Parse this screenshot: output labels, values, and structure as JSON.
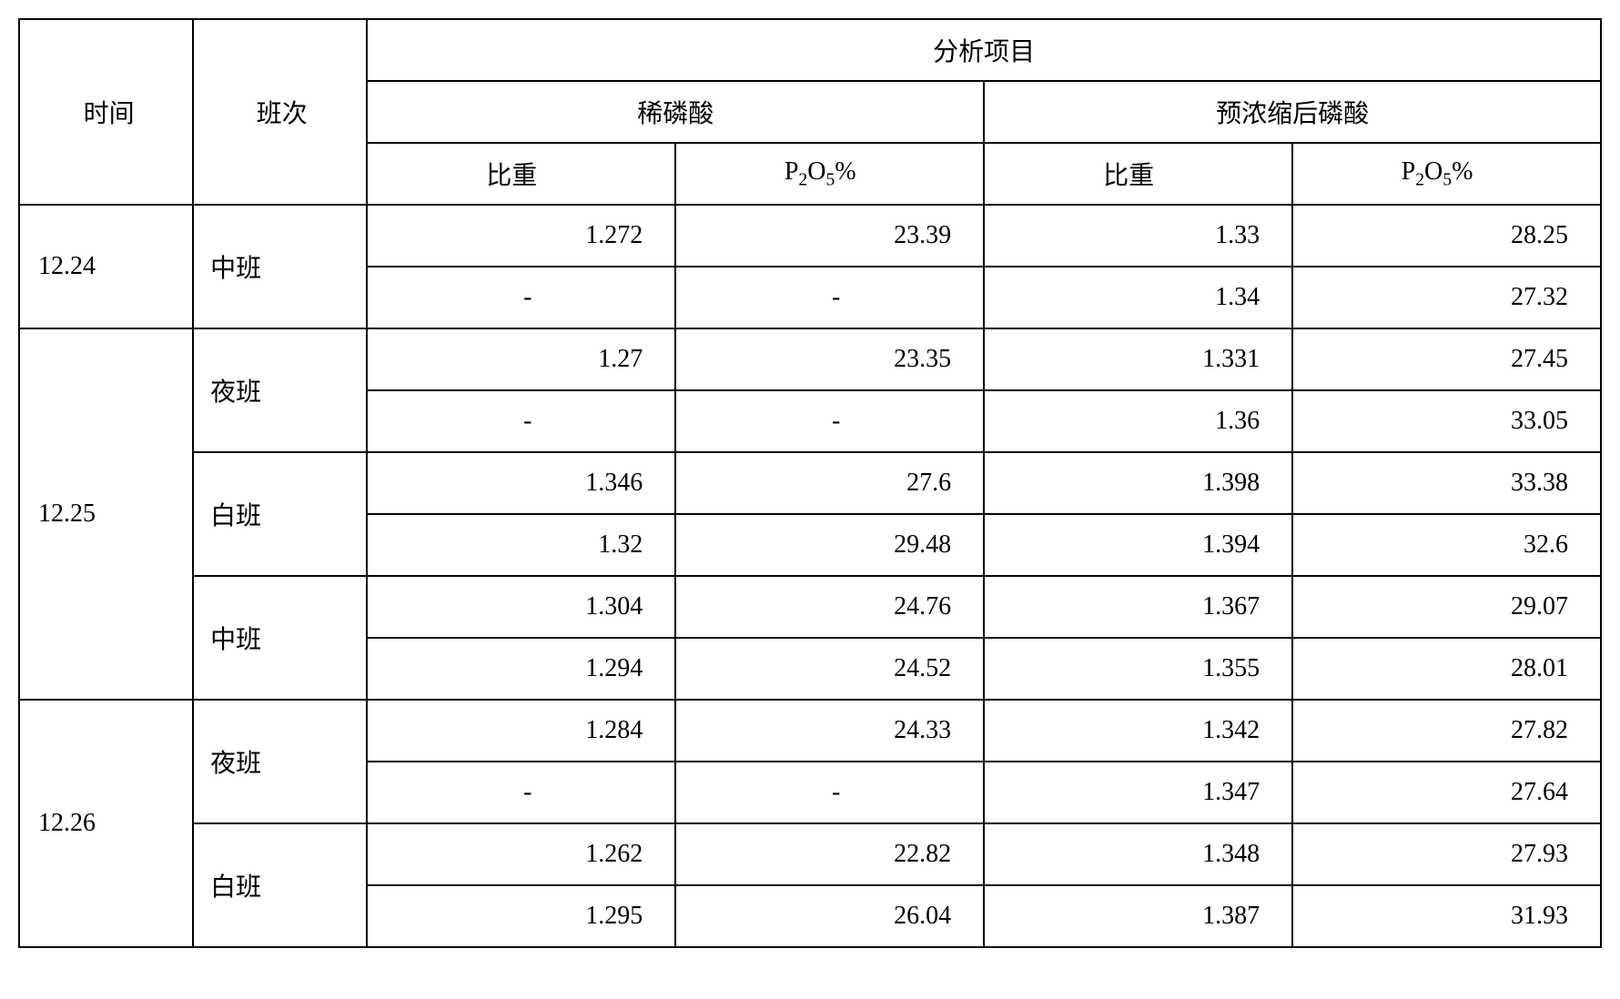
{
  "table": {
    "type": "table",
    "background_color": "#ffffff",
    "border_color": "#000000",
    "border_width": 2,
    "text_color": "#000000",
    "font_size_pt": 21,
    "font_family": "SimSun",
    "headers": {
      "time": "时间",
      "shift": "班次",
      "analysis": "分析项目",
      "dilute_acid": "稀磷酸",
      "concentrated_acid": "预浓缩后磷酸",
      "specific_gravity": "比重",
      "p2o5_percent_prefix": "P",
      "p2o5_percent_sub1": "2",
      "p2o5_percent_mid": "O",
      "p2o5_percent_sub2": "5",
      "p2o5_percent_suffix": "%"
    },
    "column_widths_pct": [
      11,
      11,
      19.5,
      19.5,
      19.5,
      19.5
    ],
    "column_alignment": [
      "left",
      "left",
      "right",
      "right",
      "right",
      "right"
    ],
    "groups": [
      {
        "date": "12.24",
        "shifts": [
          {
            "name": "中班",
            "rows": [
              {
                "dilute_sg": "1.272",
                "dilute_p2o5": "23.39",
                "conc_sg": "1.33",
                "conc_p2o5": "28.25"
              },
              {
                "dilute_sg": "-",
                "dilute_p2o5": "-",
                "conc_sg": "1.34",
                "conc_p2o5": "27.32"
              }
            ]
          }
        ]
      },
      {
        "date": "12.25",
        "shifts": [
          {
            "name": "夜班",
            "rows": [
              {
                "dilute_sg": "1.27",
                "dilute_p2o5": "23.35",
                "conc_sg": "1.331",
                "conc_p2o5": "27.45"
              },
              {
                "dilute_sg": "-",
                "dilute_p2o5": "-",
                "conc_sg": "1.36",
                "conc_p2o5": "33.05"
              }
            ]
          },
          {
            "name": "白班",
            "rows": [
              {
                "dilute_sg": "1.346",
                "dilute_p2o5": "27.6",
                "conc_sg": "1.398",
                "conc_p2o5": "33.38"
              },
              {
                "dilute_sg": "1.32",
                "dilute_p2o5": "29.48",
                "conc_sg": "1.394",
                "conc_p2o5": "32.6"
              }
            ]
          },
          {
            "name": "中班",
            "rows": [
              {
                "dilute_sg": "1.304",
                "dilute_p2o5": "24.76",
                "conc_sg": "1.367",
                "conc_p2o5": "29.07"
              },
              {
                "dilute_sg": "1.294",
                "dilute_p2o5": "24.52",
                "conc_sg": "1.355",
                "conc_p2o5": "28.01"
              }
            ]
          }
        ]
      },
      {
        "date": "12.26",
        "shifts": [
          {
            "name": "夜班",
            "rows": [
              {
                "dilute_sg": "1.284",
                "dilute_p2o5": "24.33",
                "conc_sg": "1.342",
                "conc_p2o5": "27.82"
              },
              {
                "dilute_sg": "-",
                "dilute_p2o5": "-",
                "conc_sg": "1.347",
                "conc_p2o5": "27.64"
              }
            ]
          },
          {
            "name": "白班",
            "rows": [
              {
                "dilute_sg": "1.262",
                "dilute_p2o5": "22.82",
                "conc_sg": "1.348",
                "conc_p2o5": "27.93"
              },
              {
                "dilute_sg": "1.295",
                "dilute_p2o5": "26.04",
                "conc_sg": "1.387",
                "conc_p2o5": "31.93"
              }
            ]
          }
        ]
      }
    ]
  }
}
